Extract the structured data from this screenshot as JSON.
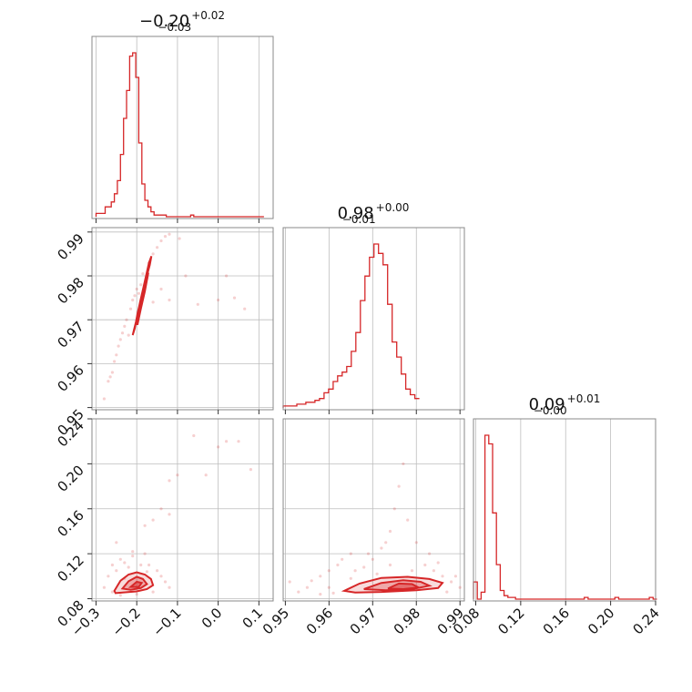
{
  "colors": {
    "series": "#d62728"
  },
  "chart_data": {
    "type": "corner",
    "parameters": [
      {
        "range": [
          -0.31,
          0.135
        ],
        "ticks": [
          -0.3,
          -0.2,
          -0.1,
          0.0,
          0.1
        ],
        "tick_labels": [
          "−0.3",
          "−0.2",
          "−0.1",
          "0.0",
          "0.1"
        ],
        "title_main": "−0.20",
        "title_plus": "+0.02",
        "title_minus": "−0.03",
        "hist_bins_start": -0.3,
        "hist_bin_width": 0.0075,
        "hist_counts": [
          2,
          2,
          2,
          6,
          6,
          9,
          14,
          22,
          38,
          60,
          77,
          98,
          100,
          85,
          45,
          20,
          10,
          6,
          3,
          1,
          1,
          1,
          1,
          0,
          0,
          0,
          0,
          0,
          0,
          0,
          0,
          1,
          0,
          0,
          0,
          0,
          0,
          0,
          0,
          0,
          0,
          0,
          0,
          0,
          0,
          0,
          0,
          0,
          0,
          0,
          0,
          0,
          0,
          0,
          0
        ]
      },
      {
        "range": [
          0.9495,
          0.991
        ],
        "ticks": [
          0.95,
          0.96,
          0.97,
          0.98,
          0.99
        ],
        "tick_labels": [
          "0.95",
          "0.96",
          "0.97",
          "0.98",
          "0.99"
        ],
        "title_main": "0.98",
        "title_plus": "+0.00",
        "title_minus": "−0.01",
        "hist_bins_start": 0.9495,
        "hist_bin_width": 0.00104,
        "hist_counts": [
          1,
          1,
          1,
          2,
          2,
          3,
          3,
          4,
          5,
          8,
          10,
          14,
          17,
          19,
          22,
          30,
          40,
          57,
          70,
          80,
          87,
          82,
          76,
          55,
          35,
          27,
          18,
          10,
          7,
          5
        ]
      },
      {
        "range": [
          0.078,
          0.24
        ],
        "ticks": [
          0.08,
          0.12,
          0.16,
          0.2,
          0.24
        ],
        "tick_labels": [
          "0.08",
          "0.12",
          "0.16",
          "0.20",
          "0.24"
        ],
        "title_main": "0.09",
        "title_plus": "+0.01",
        "title_minus": "−0.00",
        "hist_bins_start": 0.078,
        "hist_bin_width": 0.0034,
        "hist_counts": [
          10,
          0,
          4,
          95,
          90,
          50,
          20,
          5,
          2,
          1,
          1,
          0,
          0,
          0,
          0,
          0,
          0,
          0,
          0,
          0,
          0,
          0,
          0,
          0,
          0,
          0,
          0,
          0,
          0,
          1,
          0,
          0,
          0,
          0,
          0,
          0,
          0,
          1,
          0,
          0,
          0,
          0,
          0,
          0,
          0,
          0,
          1,
          0,
          0
        ]
      }
    ],
    "panels": [
      {
        "x_param": 0,
        "y_param": 1,
        "contour_levels": [
          [
            [
              -0.205,
              0.968
            ],
            [
              -0.198,
              0.9715
            ],
            [
              -0.188,
              0.9755
            ],
            [
              -0.178,
              0.979
            ],
            [
              -0.168,
              0.9825
            ],
            [
              -0.164,
              0.9845
            ],
            [
              -0.17,
              0.983
            ],
            [
              -0.182,
              0.978
            ],
            [
              -0.192,
              0.974
            ],
            [
              -0.202,
              0.9695
            ],
            [
              -0.21,
              0.9665
            ]
          ],
          [
            [
              -0.2,
              0.969
            ],
            [
              -0.192,
              0.9735
            ],
            [
              -0.182,
              0.9775
            ],
            [
              -0.174,
              0.9805
            ],
            [
              -0.172,
              0.9805
            ],
            [
              -0.18,
              0.9765
            ],
            [
              -0.19,
              0.9725
            ],
            [
              -0.198,
              0.969
            ]
          ],
          [
            [
              -0.192,
              0.9725
            ],
            [
              -0.184,
              0.976
            ],
            [
              -0.178,
              0.9785
            ],
            [
              -0.182,
              0.9765
            ],
            [
              -0.19,
              0.973
            ]
          ]
        ],
        "points": [
          [
            -0.28,
            0.952
          ],
          [
            -0.27,
            0.956
          ],
          [
            -0.26,
            0.958
          ],
          [
            -0.255,
            0.9605
          ],
          [
            -0.25,
            0.962
          ],
          [
            -0.245,
            0.964
          ],
          [
            -0.24,
            0.9655
          ],
          [
            -0.235,
            0.967
          ],
          [
            -0.23,
            0.9685
          ],
          [
            -0.225,
            0.97
          ],
          [
            -0.215,
            0.9725
          ],
          [
            -0.21,
            0.9745
          ],
          [
            -0.205,
            0.9755
          ],
          [
            -0.2,
            0.977
          ],
          [
            -0.19,
            0.978
          ],
          [
            -0.185,
            0.9805
          ],
          [
            -0.17,
            0.983
          ],
          [
            -0.16,
            0.985
          ],
          [
            -0.15,
            0.9865
          ],
          [
            -0.14,
            0.988
          ],
          [
            -0.13,
            0.989
          ],
          [
            -0.12,
            0.9895
          ],
          [
            -0.16,
            0.974
          ],
          [
            -0.14,
            0.977
          ],
          [
            -0.12,
            0.9745
          ],
          [
            -0.05,
            0.9735
          ],
          [
            0.0,
            0.9745
          ],
          [
            0.02,
            0.98
          ],
          [
            0.04,
            0.975
          ],
          [
            0.065,
            0.9725
          ],
          [
            -0.08,
            0.98
          ],
          [
            -0.095,
            0.9885
          ],
          [
            -0.22,
            0.9665
          ],
          [
            -0.175,
            0.9795
          ],
          [
            -0.265,
            0.957
          ],
          [
            -0.195,
            0.976
          ]
        ]
      },
      {
        "x_param": 0,
        "y_param": 2,
        "contour_levels": [
          [
            [
              -0.255,
              0.087
            ],
            [
              -0.24,
              0.096
            ],
            [
              -0.22,
              0.1015
            ],
            [
              -0.2,
              0.1035
            ],
            [
              -0.18,
              0.1015
            ],
            [
              -0.165,
              0.0975
            ],
            [
              -0.16,
              0.092
            ],
            [
              -0.175,
              0.0885
            ],
            [
              -0.2,
              0.0865
            ],
            [
              -0.235,
              0.0855
            ],
            [
              -0.252,
              0.085
            ]
          ],
          [
            [
              -0.235,
              0.089
            ],
            [
              -0.22,
              0.0955
            ],
            [
              -0.2,
              0.0995
            ],
            [
              -0.185,
              0.0975
            ],
            [
              -0.175,
              0.093
            ],
            [
              -0.19,
              0.0895
            ],
            [
              -0.215,
              0.088
            ]
          ],
          [
            [
              -0.215,
              0.0905
            ],
            [
              -0.2,
              0.095
            ],
            [
              -0.188,
              0.094
            ],
            [
              -0.195,
              0.0905
            ]
          ]
        ],
        "points": [
          [
            -0.28,
            0.09
          ],
          [
            -0.27,
            0.1
          ],
          [
            -0.26,
            0.11
          ],
          [
            -0.25,
            0.105
          ],
          [
            -0.24,
            0.115
          ],
          [
            -0.23,
            0.112
          ],
          [
            -0.22,
            0.108
          ],
          [
            -0.21,
            0.118
          ],
          [
            -0.19,
            0.11
          ],
          [
            -0.18,
            0.12
          ],
          [
            -0.17,
            0.11
          ],
          [
            -0.15,
            0.105
          ],
          [
            -0.14,
            0.1
          ],
          [
            -0.13,
            0.095
          ],
          [
            -0.12,
            0.09
          ],
          [
            -0.26,
            0.086
          ],
          [
            -0.24,
            0.083
          ],
          [
            -0.2,
            0.084
          ],
          [
            -0.16,
            0.086
          ],
          [
            -0.25,
            0.13
          ],
          [
            -0.18,
            0.145
          ],
          [
            -0.16,
            0.15
          ],
          [
            -0.12,
            0.155
          ],
          [
            -0.1,
            0.19
          ],
          [
            -0.12,
            0.185
          ],
          [
            -0.06,
            0.225
          ],
          [
            0.0,
            0.215
          ],
          [
            0.02,
            0.22
          ],
          [
            0.05,
            0.22
          ],
          [
            0.08,
            0.195
          ],
          [
            -0.03,
            0.19
          ],
          [
            -0.14,
            0.16
          ],
          [
            -0.21,
            0.122
          ],
          [
            -0.23,
            0.098
          ],
          [
            -0.175,
            0.104
          ]
        ]
      },
      {
        "x_param": 1,
        "y_param": 2,
        "contour_levels": [
          [
            [
              0.9635,
              0.087
            ],
            [
              0.967,
              0.0935
            ],
            [
              0.972,
              0.0985
            ],
            [
              0.978,
              0.0995
            ],
            [
              0.983,
              0.0975
            ],
            [
              0.986,
              0.094
            ],
            [
              0.985,
              0.0895
            ],
            [
              0.98,
              0.0875
            ],
            [
              0.972,
              0.086
            ],
            [
              0.966,
              0.0855
            ]
          ],
          [
            [
              0.968,
              0.0885
            ],
            [
              0.972,
              0.094
            ],
            [
              0.977,
              0.0965
            ],
            [
              0.981,
              0.095
            ],
            [
              0.983,
              0.0915
            ],
            [
              0.979,
              0.0885
            ],
            [
              0.973,
              0.0875
            ]
          ],
          [
            [
              0.9735,
              0.089
            ],
            [
              0.976,
              0.0935
            ],
            [
              0.979,
              0.093
            ],
            [
              0.9805,
              0.09
            ],
            [
              0.977,
              0.0885
            ]
          ]
        ],
        "points": [
          [
            0.951,
            0.095
          ],
          [
            0.955,
            0.09
          ],
          [
            0.958,
            0.1
          ],
          [
            0.96,
            0.105
          ],
          [
            0.962,
            0.11
          ],
          [
            0.965,
            0.12
          ],
          [
            0.966,
            0.105
          ],
          [
            0.968,
            0.108
          ],
          [
            0.97,
            0.115
          ],
          [
            0.972,
            0.125
          ],
          [
            0.974,
            0.14
          ],
          [
            0.975,
            0.16
          ],
          [
            0.976,
            0.18
          ],
          [
            0.977,
            0.2
          ],
          [
            0.978,
            0.15
          ],
          [
            0.98,
            0.13
          ],
          [
            0.982,
            0.11
          ],
          [
            0.984,
            0.105
          ],
          [
            0.986,
            0.1
          ],
          [
            0.988,
            0.095
          ],
          [
            0.989,
            0.1
          ],
          [
            0.99,
            0.09
          ],
          [
            0.961,
            0.085
          ],
          [
            0.958,
            0.084
          ],
          [
            0.953,
            0.086
          ],
          [
            0.956,
            0.096
          ],
          [
            0.963,
            0.115
          ],
          [
            0.971,
            0.102
          ],
          [
            0.979,
            0.105
          ],
          [
            0.985,
            0.112
          ],
          [
            0.973,
            0.13
          ],
          [
            0.969,
            0.12
          ],
          [
            0.983,
            0.12
          ],
          [
            0.96,
            0.09
          ],
          [
            0.987,
            0.086
          ],
          [
            0.965,
            0.098
          ],
          [
            0.974,
            0.11
          ]
        ]
      }
    ]
  }
}
